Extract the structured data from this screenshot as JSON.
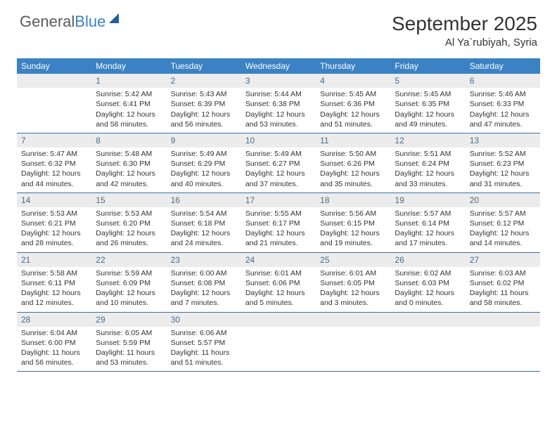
{
  "logo": {
    "text1": "General",
    "text2": "Blue"
  },
  "title": "September 2025",
  "location": "Al Ya`rubiyah, Syria",
  "colors": {
    "header_bg": "#3b82c4",
    "daynum_bg": "#ececec",
    "daynum_color": "#4a6b8a",
    "row_border": "#3b6ea0"
  },
  "days_of_week": [
    "Sunday",
    "Monday",
    "Tuesday",
    "Wednesday",
    "Thursday",
    "Friday",
    "Saturday"
  ],
  "weeks": [
    [
      {
        "n": "",
        "sr": "",
        "ss": "",
        "dl": ""
      },
      {
        "n": "1",
        "sr": "Sunrise: 5:42 AM",
        "ss": "Sunset: 6:41 PM",
        "dl": "Daylight: 12 hours and 58 minutes."
      },
      {
        "n": "2",
        "sr": "Sunrise: 5:43 AM",
        "ss": "Sunset: 6:39 PM",
        "dl": "Daylight: 12 hours and 56 minutes."
      },
      {
        "n": "3",
        "sr": "Sunrise: 5:44 AM",
        "ss": "Sunset: 6:38 PM",
        "dl": "Daylight: 12 hours and 53 minutes."
      },
      {
        "n": "4",
        "sr": "Sunrise: 5:45 AM",
        "ss": "Sunset: 6:36 PM",
        "dl": "Daylight: 12 hours and 51 minutes."
      },
      {
        "n": "5",
        "sr": "Sunrise: 5:45 AM",
        "ss": "Sunset: 6:35 PM",
        "dl": "Daylight: 12 hours and 49 minutes."
      },
      {
        "n": "6",
        "sr": "Sunrise: 5:46 AM",
        "ss": "Sunset: 6:33 PM",
        "dl": "Daylight: 12 hours and 47 minutes."
      }
    ],
    [
      {
        "n": "7",
        "sr": "Sunrise: 5:47 AM",
        "ss": "Sunset: 6:32 PM",
        "dl": "Daylight: 12 hours and 44 minutes."
      },
      {
        "n": "8",
        "sr": "Sunrise: 5:48 AM",
        "ss": "Sunset: 6:30 PM",
        "dl": "Daylight: 12 hours and 42 minutes."
      },
      {
        "n": "9",
        "sr": "Sunrise: 5:49 AM",
        "ss": "Sunset: 6:29 PM",
        "dl": "Daylight: 12 hours and 40 minutes."
      },
      {
        "n": "10",
        "sr": "Sunrise: 5:49 AM",
        "ss": "Sunset: 6:27 PM",
        "dl": "Daylight: 12 hours and 37 minutes."
      },
      {
        "n": "11",
        "sr": "Sunrise: 5:50 AM",
        "ss": "Sunset: 6:26 PM",
        "dl": "Daylight: 12 hours and 35 minutes."
      },
      {
        "n": "12",
        "sr": "Sunrise: 5:51 AM",
        "ss": "Sunset: 6:24 PM",
        "dl": "Daylight: 12 hours and 33 minutes."
      },
      {
        "n": "13",
        "sr": "Sunrise: 5:52 AM",
        "ss": "Sunset: 6:23 PM",
        "dl": "Daylight: 12 hours and 31 minutes."
      }
    ],
    [
      {
        "n": "14",
        "sr": "Sunrise: 5:53 AM",
        "ss": "Sunset: 6:21 PM",
        "dl": "Daylight: 12 hours and 28 minutes."
      },
      {
        "n": "15",
        "sr": "Sunrise: 5:53 AM",
        "ss": "Sunset: 6:20 PM",
        "dl": "Daylight: 12 hours and 26 minutes."
      },
      {
        "n": "16",
        "sr": "Sunrise: 5:54 AM",
        "ss": "Sunset: 6:18 PM",
        "dl": "Daylight: 12 hours and 24 minutes."
      },
      {
        "n": "17",
        "sr": "Sunrise: 5:55 AM",
        "ss": "Sunset: 6:17 PM",
        "dl": "Daylight: 12 hours and 21 minutes."
      },
      {
        "n": "18",
        "sr": "Sunrise: 5:56 AM",
        "ss": "Sunset: 6:15 PM",
        "dl": "Daylight: 12 hours and 19 minutes."
      },
      {
        "n": "19",
        "sr": "Sunrise: 5:57 AM",
        "ss": "Sunset: 6:14 PM",
        "dl": "Daylight: 12 hours and 17 minutes."
      },
      {
        "n": "20",
        "sr": "Sunrise: 5:57 AM",
        "ss": "Sunset: 6:12 PM",
        "dl": "Daylight: 12 hours and 14 minutes."
      }
    ],
    [
      {
        "n": "21",
        "sr": "Sunrise: 5:58 AM",
        "ss": "Sunset: 6:11 PM",
        "dl": "Daylight: 12 hours and 12 minutes."
      },
      {
        "n": "22",
        "sr": "Sunrise: 5:59 AM",
        "ss": "Sunset: 6:09 PM",
        "dl": "Daylight: 12 hours and 10 minutes."
      },
      {
        "n": "23",
        "sr": "Sunrise: 6:00 AM",
        "ss": "Sunset: 6:08 PM",
        "dl": "Daylight: 12 hours and 7 minutes."
      },
      {
        "n": "24",
        "sr": "Sunrise: 6:01 AM",
        "ss": "Sunset: 6:06 PM",
        "dl": "Daylight: 12 hours and 5 minutes."
      },
      {
        "n": "25",
        "sr": "Sunrise: 6:01 AM",
        "ss": "Sunset: 6:05 PM",
        "dl": "Daylight: 12 hours and 3 minutes."
      },
      {
        "n": "26",
        "sr": "Sunrise: 6:02 AM",
        "ss": "Sunset: 6:03 PM",
        "dl": "Daylight: 12 hours and 0 minutes."
      },
      {
        "n": "27",
        "sr": "Sunrise: 6:03 AM",
        "ss": "Sunset: 6:02 PM",
        "dl": "Daylight: 11 hours and 58 minutes."
      }
    ],
    [
      {
        "n": "28",
        "sr": "Sunrise: 6:04 AM",
        "ss": "Sunset: 6:00 PM",
        "dl": "Daylight: 11 hours and 56 minutes."
      },
      {
        "n": "29",
        "sr": "Sunrise: 6:05 AM",
        "ss": "Sunset: 5:59 PM",
        "dl": "Daylight: 11 hours and 53 minutes."
      },
      {
        "n": "30",
        "sr": "Sunrise: 6:06 AM",
        "ss": "Sunset: 5:57 PM",
        "dl": "Daylight: 11 hours and 51 minutes."
      },
      {
        "n": "",
        "sr": "",
        "ss": "",
        "dl": ""
      },
      {
        "n": "",
        "sr": "",
        "ss": "",
        "dl": ""
      },
      {
        "n": "",
        "sr": "",
        "ss": "",
        "dl": ""
      },
      {
        "n": "",
        "sr": "",
        "ss": "",
        "dl": ""
      }
    ]
  ]
}
